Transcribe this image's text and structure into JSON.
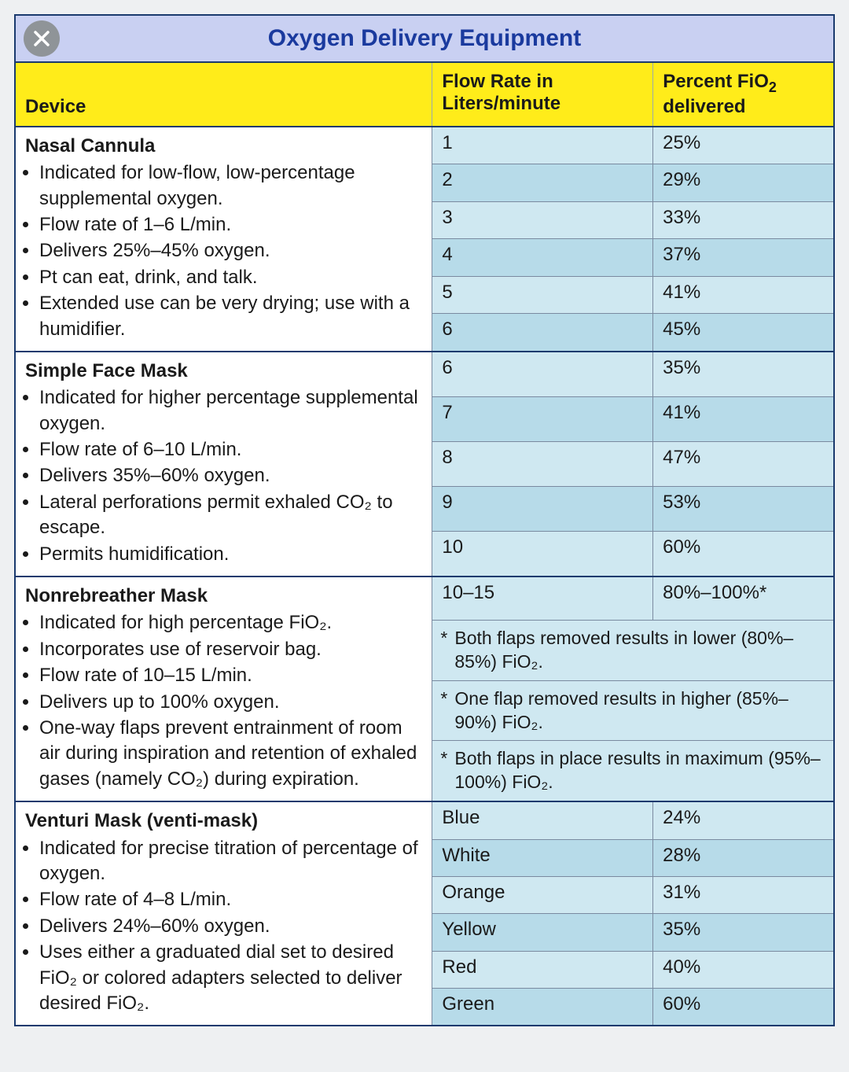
{
  "title": "Oxygen Delivery Equipment",
  "headers": {
    "device": "Device",
    "flow": "Flow Rate in Liters/minute",
    "fio2_pre": "Percent FiO",
    "fio2_sub": "2",
    "fio2_post": " delivered"
  },
  "colors": {
    "title_bg": "#c9d0f2",
    "title_text": "#1a3a9e",
    "border": "#1a3a6e",
    "header_bg": "#ffec1a",
    "row_bg": "#cfe8f1",
    "row_bg_alt": "#b7dbe9",
    "close_bg": "#8f9498"
  },
  "typography": {
    "title_fontsize": 30,
    "body_fontsize": 24,
    "font_family": "Helvetica, Arial, sans-serif"
  },
  "sections": [
    {
      "name": "Nasal Cannula",
      "bullets": [
        "Indicated for low-flow, low-percentage supplemental oxygen.",
        "Flow rate of 1–6 L/min.",
        "Delivers 25%–45% oxygen.",
        "Pt can eat, drink, and talk.",
        "Extended use can be very drying; use with a humidifier."
      ],
      "rows": [
        {
          "flow": "1",
          "fio2": "25%"
        },
        {
          "flow": "2",
          "fio2": "29%"
        },
        {
          "flow": "3",
          "fio2": "33%"
        },
        {
          "flow": "4",
          "fio2": "37%"
        },
        {
          "flow": "5",
          "fio2": "41%"
        },
        {
          "flow": "6",
          "fio2": "45%"
        }
      ]
    },
    {
      "name": "Simple Face Mask",
      "bullets": [
        "Indicated for higher percentage supplemental oxygen.",
        "Flow rate of 6–10 L/min.",
        "Delivers 35%–60% oxygen.",
        "Lateral perforations permit exhaled CO₂ to escape.",
        "Permits humidification."
      ],
      "rows": [
        {
          "flow": "6",
          "fio2": "35%"
        },
        {
          "flow": "7",
          "fio2": "41%"
        },
        {
          "flow": "8",
          "fio2": "47%"
        },
        {
          "flow": "9",
          "fio2": "53%"
        },
        {
          "flow": "10",
          "fio2": "60%"
        }
      ]
    },
    {
      "name": "Nonrebreather Mask",
      "bullets": [
        "Indicated for high percentage FiO₂.",
        "Incorporates use of reservoir bag.",
        "Flow rate of 10–15 L/min.",
        "Delivers up to 100% oxygen.",
        "One-way flaps prevent entrainment of room air during inspiration and retention of exhaled gases (namely CO₂) during expiration."
      ],
      "rows": [
        {
          "flow": "10–15",
          "fio2": "80%–100%*"
        }
      ],
      "notes": [
        "Both flaps removed results in lower (80%–85%) FiO₂.",
        "One flap removed results in higher (85%–90%) FiO₂.",
        "Both flaps in place results in maximum (95%–100%) FiO₂."
      ]
    },
    {
      "name": "Venturi Mask (venti-mask)",
      "bullets": [
        "Indicated for precise titration of percentage of oxygen.",
        "Flow rate of 4–8 L/min.",
        "Delivers 24%–60% oxygen.",
        "Uses either a graduated dial set to desired FiO₂ or colored adapters selected to deliver desired FiO₂."
      ],
      "rows": [
        {
          "flow": "Blue",
          "fio2": "24%"
        },
        {
          "flow": "White",
          "fio2": "28%"
        },
        {
          "flow": "Orange",
          "fio2": "31%"
        },
        {
          "flow": "Yellow",
          "fio2": "35%"
        },
        {
          "flow": "Red",
          "fio2": "40%"
        },
        {
          "flow": "Green",
          "fio2": "60%"
        }
      ]
    }
  ]
}
